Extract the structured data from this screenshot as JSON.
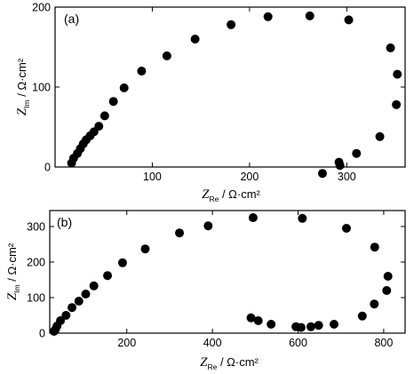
{
  "chart_data": [
    {
      "type": "scatter",
      "panel_label": "(a)",
      "xlabel": {
        "var": "Z",
        "sub": "Re",
        "unit": " / Ω·cm²"
      },
      "ylabel": {
        "var": "Z",
        "sub": "Im",
        "unit": " / Ω·cm²"
      },
      "xlim": [
        0,
        360
      ],
      "ylim": [
        0,
        200
      ],
      "xticks": [
        100,
        200,
        300
      ],
      "yticks": [
        0,
        100,
        200
      ],
      "grid": false,
      "marker": {
        "color": "#000000",
        "shape": "circle"
      },
      "series": [
        {
          "x": [
            17,
            19,
            23,
            26,
            29,
            32,
            36,
            40,
            45,
            51,
            60,
            71,
            89,
            115,
            144,
            181,
            219,
            262,
            302,
            345,
            352,
            351,
            334,
            310,
            292,
            293,
            275
          ],
          "y": [
            5,
            11,
            17,
            23,
            29,
            34,
            39,
            44,
            51,
            64,
            82,
            99,
            120,
            139,
            160,
            178,
            188,
            189,
            184,
            149,
            116,
            78,
            38,
            17,
            6,
            2,
            -8
          ]
        }
      ]
    },
    {
      "type": "scatter",
      "panel_label": "(b)",
      "xlabel": {
        "var": "Z",
        "sub": "Re",
        "unit": " / Ω·cm²"
      },
      "ylabel": {
        "var": "Z",
        "sub": "Im",
        "unit": " / Ω·cm²"
      },
      "xlim": [
        20,
        850
      ],
      "ylim": [
        0,
        345
      ],
      "xticks": [
        200,
        400,
        600,
        800
      ],
      "yticks": [
        0,
        100,
        200,
        300
      ],
      "grid": false,
      "marker": {
        "color": "#000000",
        "shape": "circle"
      },
      "series": [
        {
          "x": [
            30,
            33,
            37,
            45,
            58,
            72,
            88,
            104,
            123,
            155,
            190,
            243,
            323,
            390,
            495,
            610,
            713,
            779,
            810,
            807,
            778,
            750,
            684,
            648,
            630,
            607,
            595,
            537,
            507,
            490
          ],
          "y": [
            5,
            10,
            20,
            35,
            50,
            72,
            90,
            110,
            133,
            162,
            198,
            237,
            282,
            302,
            325,
            323,
            295,
            242,
            160,
            120,
            82,
            48,
            25,
            22,
            18,
            16,
            18,
            25,
            35,
            43
          ]
        }
      ]
    }
  ]
}
